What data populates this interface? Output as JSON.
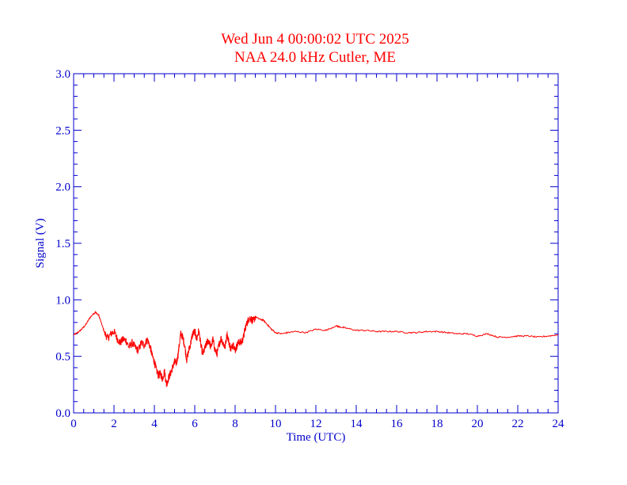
{
  "chart_data": {
    "type": "line",
    "title": "Wed Jun 4 00:00:02 UTC 2025",
    "subtitle": "NAA 24.0 kHz Cutler, ME",
    "xlabel": "Time (UTC)",
    "ylabel": "Signal (V)",
    "xlim": [
      0,
      24
    ],
    "ylim": [
      0,
      3.0
    ],
    "x_ticks": [
      "0",
      "2",
      "4",
      "6",
      "8",
      "10",
      "12",
      "14",
      "16",
      "18",
      "20",
      "22",
      "24"
    ],
    "y_ticks": [
      "0.0",
      "0.5",
      "1.0",
      "1.5",
      "2.0",
      "2.5",
      "3.0"
    ],
    "grid": false,
    "colors": {
      "axes": "#0000cc",
      "series": "#ff0000",
      "title": "#ff0000"
    },
    "series": [
      {
        "x": [
          0,
          0.2,
          0.4,
          0.6,
          0.8,
          1.0,
          1.1,
          1.25,
          1.4,
          1.55,
          1.7,
          1.85,
          2.0,
          2.15,
          2.3,
          2.45,
          2.6,
          2.75,
          2.9,
          3.05,
          3.2,
          3.35,
          3.5,
          3.65,
          3.8,
          3.9,
          4.0,
          4.1,
          4.2,
          4.3,
          4.4,
          4.5,
          4.6,
          4.7,
          4.8,
          4.9,
          5.0,
          5.1,
          5.2,
          5.3,
          5.4,
          5.5,
          5.6,
          5.7,
          5.8,
          5.9,
          6.0,
          6.1,
          6.2,
          6.3,
          6.4,
          6.5,
          6.6,
          6.7,
          6.8,
          6.9,
          7.0,
          7.1,
          7.2,
          7.3,
          7.4,
          7.5,
          7.6,
          7.7,
          7.8,
          7.9,
          8.0,
          8.1,
          8.2,
          8.3,
          8.4,
          8.5,
          8.6,
          8.7,
          8.8,
          8.9,
          9.0,
          9.2,
          9.4,
          9.6,
          9.8,
          10.0,
          10.3,
          10.6,
          11.0,
          11.5,
          12.0,
          12.5,
          13.0,
          13.2,
          13.5,
          14.0,
          14.5,
          15.0,
          15.5,
          16.0,
          16.5,
          17.0,
          17.5,
          18.0,
          18.5,
          19.0,
          19.5,
          20.0,
          20.5,
          21.0,
          21.5,
          22.0,
          22.5,
          23.0,
          23.5,
          24.0
        ],
        "values": [
          0.69,
          0.71,
          0.74,
          0.78,
          0.84,
          0.88,
          0.89,
          0.86,
          0.78,
          0.7,
          0.66,
          0.7,
          0.72,
          0.66,
          0.62,
          0.65,
          0.64,
          0.58,
          0.62,
          0.58,
          0.55,
          0.62,
          0.6,
          0.65,
          0.58,
          0.5,
          0.45,
          0.38,
          0.33,
          0.35,
          0.3,
          0.37,
          0.25,
          0.31,
          0.35,
          0.4,
          0.45,
          0.44,
          0.55,
          0.7,
          0.67,
          0.6,
          0.47,
          0.55,
          0.62,
          0.7,
          0.72,
          0.65,
          0.73,
          0.6,
          0.52,
          0.57,
          0.62,
          0.64,
          0.58,
          0.65,
          0.56,
          0.52,
          0.6,
          0.66,
          0.62,
          0.58,
          0.7,
          0.62,
          0.56,
          0.62,
          0.55,
          0.6,
          0.63,
          0.62,
          0.66,
          0.75,
          0.8,
          0.84,
          0.83,
          0.81,
          0.85,
          0.83,
          0.82,
          0.78,
          0.74,
          0.71,
          0.7,
          0.71,
          0.72,
          0.71,
          0.74,
          0.73,
          0.77,
          0.76,
          0.75,
          0.73,
          0.73,
          0.72,
          0.72,
          0.72,
          0.71,
          0.71,
          0.72,
          0.72,
          0.71,
          0.7,
          0.7,
          0.68,
          0.7,
          0.67,
          0.67,
          0.68,
          0.68,
          0.67,
          0.68,
          0.69
        ]
      }
    ]
  }
}
